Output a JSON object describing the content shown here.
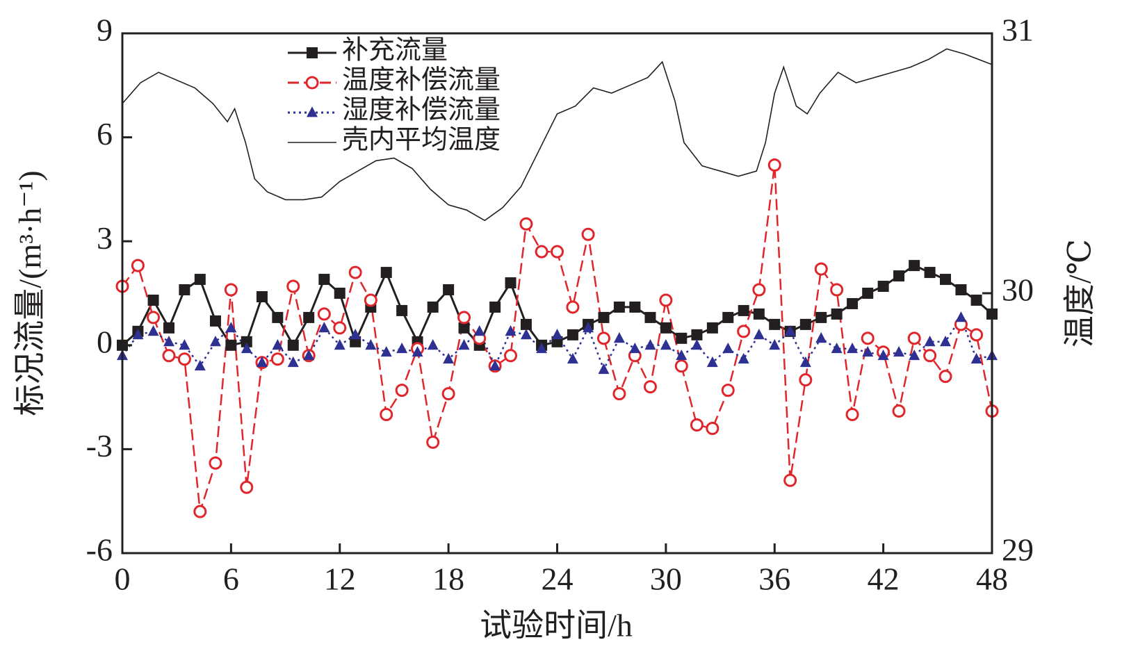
{
  "chart_data": {
    "type": "line",
    "xlabel": "试验时间/h",
    "ylabel": "标况流量/(m³·h⁻¹)",
    "y2label": "温度/℃",
    "xlim": [
      0,
      48
    ],
    "xticks": [
      0,
      6,
      12,
      18,
      24,
      30,
      36,
      42,
      48
    ],
    "ylim": [
      -6,
      9
    ],
    "yticks": [
      -6,
      -3,
      0,
      3,
      6,
      9
    ],
    "y2lim": [
      29,
      31
    ],
    "y2ticks": [
      29,
      30,
      31
    ],
    "series": [
      {
        "name": "补充流量",
        "color": "#231f20",
        "marker": "square",
        "line_style": "solid",
        "x": [
          0,
          0.86,
          1.71,
          2.57,
          3.43,
          4.29,
          5.14,
          6,
          6.86,
          7.71,
          8.57,
          9.43,
          10.29,
          11.14,
          12,
          12.86,
          13.71,
          14.57,
          15.43,
          16.29,
          17.14,
          18,
          18.86,
          19.71,
          20.57,
          21.43,
          22.29,
          23.14,
          24,
          24.86,
          25.71,
          26.57,
          27.43,
          28.29,
          29.14,
          30,
          30.86,
          31.71,
          32.57,
          33.43,
          34.29,
          35.14,
          36,
          36.86,
          37.71,
          38.57,
          39.43,
          40.29,
          41.14,
          42,
          42.86,
          43.71,
          44.57,
          45.43,
          46.29,
          47.14,
          48
        ],
        "values": [
          0.0,
          0.4,
          1.3,
          0.5,
          1.6,
          1.9,
          0.7,
          0.0,
          0.1,
          1.4,
          0.8,
          0.0,
          0.8,
          1.9,
          1.5,
          0.1,
          1.1,
          2.1,
          1.0,
          0.1,
          1.1,
          1.6,
          0.5,
          0.0,
          1.1,
          1.8,
          0.6,
          0.0,
          0.1,
          0.3,
          0.6,
          0.8,
          1.1,
          1.1,
          0.8,
          0.5,
          0.2,
          0.3,
          0.5,
          0.8,
          1.0,
          0.9,
          0.6,
          0.4,
          0.6,
          0.8,
          0.9,
          1.2,
          1.5,
          1.7,
          2.0,
          2.3,
          2.1,
          1.9,
          1.6,
          1.3,
          0.9
        ]
      },
      {
        "name": "温度补偿流量",
        "color": "#e0262b",
        "marker": "circle",
        "line_style": "dashed",
        "x": [
          0,
          0.86,
          1.71,
          2.57,
          3.43,
          4.29,
          5.14,
          6,
          6.86,
          7.71,
          8.57,
          9.43,
          10.29,
          11.14,
          12,
          12.86,
          13.71,
          14.57,
          15.43,
          16.29,
          17.14,
          18,
          18.86,
          19.71,
          20.57,
          21.43,
          22.29,
          23.14,
          24,
          24.86,
          25.71,
          26.57,
          27.43,
          28.29,
          29.14,
          30,
          30.86,
          31.71,
          32.57,
          33.43,
          34.29,
          35.14,
          36,
          36.86,
          37.71,
          38.57,
          39.43,
          40.29,
          41.14,
          42,
          42.86,
          43.71,
          44.57,
          45.43,
          46.29,
          47.14,
          48
        ],
        "values": [
          1.7,
          2.3,
          0.8,
          -0.3,
          -0.4,
          -4.8,
          -3.4,
          1.6,
          -4.1,
          -0.5,
          -0.4,
          1.7,
          -0.3,
          0.9,
          0.5,
          2.1,
          1.3,
          -2.0,
          -1.3,
          -0.1,
          -2.8,
          -1.4,
          0.8,
          0.2,
          -0.6,
          -0.3,
          3.5,
          2.7,
          2.7,
          1.1,
          3.2,
          0.2,
          -1.4,
          -0.3,
          -1.2,
          1.3,
          -0.6,
          -2.3,
          -2.4,
          -1.3,
          0.4,
          1.6,
          5.2,
          -3.9,
          -1.0,
          2.2,
          1.6,
          -2.0,
          0.2,
          -0.2,
          -1.9,
          0.2,
          -0.3,
          -0.9,
          0.6,
          0.3,
          -1.9
        ]
      },
      {
        "name": "湿度补偿流量",
        "color": "#2e3192",
        "marker": "triangle",
        "line_style": "dotted",
        "x": [
          0,
          0.86,
          1.71,
          2.57,
          3.43,
          4.29,
          5.14,
          6,
          6.86,
          7.71,
          8.57,
          9.43,
          10.29,
          11.14,
          12,
          12.86,
          13.71,
          14.57,
          15.43,
          16.29,
          17.14,
          18,
          18.86,
          19.71,
          20.57,
          21.43,
          22.29,
          23.14,
          24,
          24.86,
          25.71,
          26.57,
          27.43,
          28.29,
          29.14,
          30,
          30.86,
          31.71,
          32.57,
          33.43,
          34.29,
          35.14,
          36,
          36.86,
          37.71,
          38.57,
          39.43,
          40.29,
          41.14,
          42,
          42.86,
          43.71,
          44.57,
          45.43,
          46.29,
          47.14,
          48
        ],
        "values": [
          -0.3,
          0.3,
          0.4,
          0.1,
          0.0,
          -0.6,
          0.1,
          0.5,
          -0.1,
          -0.5,
          0.0,
          -0.5,
          -0.3,
          0.5,
          0.0,
          0.3,
          0.0,
          -0.2,
          -0.1,
          -0.2,
          0.0,
          -0.4,
          0.0,
          0.4,
          -0.6,
          0.4,
          0.3,
          -0.1,
          0.3,
          -0.4,
          0.5,
          -0.7,
          0.2,
          -0.1,
          0.0,
          0.0,
          -0.3,
          0.0,
          -0.5,
          -0.1,
          -0.4,
          0.3,
          0.0,
          0.4,
          -0.5,
          0.2,
          -0.1,
          -0.1,
          -0.2,
          -0.3,
          -0.2,
          -0.3,
          0.1,
          0.1,
          0.8,
          -0.4,
          -0.3
        ]
      },
      {
        "name": "壳内平均温度",
        "color": "#231f20",
        "line_style": "solid",
        "axis": "y2",
        "x": [
          0,
          1,
          2,
          3,
          4,
          5,
          5.8,
          6.2,
          6.8,
          7.3,
          8,
          9,
          10,
          11,
          12,
          13,
          14,
          15,
          16,
          17,
          18,
          19,
          20,
          21,
          22,
          23,
          24,
          25,
          26,
          27,
          28,
          29,
          29.8,
          30.5,
          31,
          32,
          33,
          34,
          35,
          35.5,
          36,
          36.5,
          37.2,
          37.8,
          38.5,
          39.5,
          40.5,
          41.5,
          42.5,
          43.5,
          44.5,
          45.5,
          46.5,
          48
        ],
        "values": [
          30.73,
          30.81,
          30.85,
          30.82,
          30.79,
          30.73,
          30.66,
          30.71,
          30.58,
          30.44,
          30.39,
          30.36,
          30.36,
          30.37,
          30.43,
          30.47,
          30.51,
          30.52,
          30.48,
          30.4,
          30.34,
          30.32,
          30.28,
          30.33,
          30.41,
          30.55,
          30.69,
          30.72,
          30.79,
          30.77,
          30.8,
          30.83,
          30.89,
          30.74,
          30.58,
          30.49,
          30.47,
          30.45,
          30.47,
          30.58,
          30.77,
          30.87,
          30.72,
          30.69,
          30.77,
          30.85,
          30.81,
          30.83,
          30.85,
          30.87,
          30.9,
          30.94,
          30.92,
          30.88
        ]
      }
    ]
  }
}
